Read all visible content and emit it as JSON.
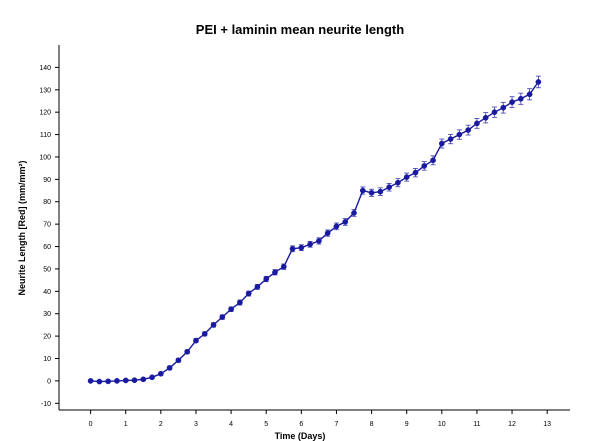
{
  "chart_data": {
    "type": "line",
    "title": "PEI + laminin mean neurite length",
    "xlabel": "Time (Days)",
    "ylabel": "Neurite Length [Red] (mm/mm²)",
    "xlim": [
      -0.9,
      13.65
    ],
    "ylim": [
      -13,
      150
    ],
    "x_ticks": [
      0,
      1,
      2,
      3,
      4,
      5,
      6,
      7,
      8,
      9,
      10,
      11,
      12,
      13
    ],
    "y_ticks": [
      -10,
      0,
      10,
      20,
      30,
      40,
      50,
      60,
      70,
      80,
      90,
      100,
      110,
      120,
      130,
      140
    ],
    "grid": false,
    "legend": "none",
    "colors": {
      "series": "#1a1aa0",
      "error_bar": "#3a3ab0",
      "axis": "#000000"
    },
    "series": [
      {
        "x": [
          0,
          0.25,
          0.5,
          0.75,
          1,
          1.25,
          1.5,
          1.75,
          2,
          2.25,
          2.5,
          2.75,
          3,
          3.25,
          3.5,
          3.75,
          4,
          4.25,
          4.5,
          4.75,
          5,
          5.25,
          5.5,
          5.75,
          6,
          6.25,
          6.5,
          6.75,
          7,
          7.25,
          7.5,
          7.75,
          8,
          8.25,
          8.5,
          8.75,
          9,
          9.25,
          9.5,
          9.75,
          10,
          10.25,
          10.5,
          10.75,
          11,
          11.25,
          11.5,
          11.75,
          12,
          12.25,
          12.5,
          12.75
        ],
        "y": [
          0,
          -0.3,
          -0.2,
          0,
          0.2,
          0.3,
          0.7,
          1.6,
          3.2,
          5.8,
          9.2,
          13,
          18,
          21,
          25,
          28.5,
          32,
          35,
          39,
          42,
          45.5,
          48.5,
          51,
          59,
          59.5,
          61,
          62.5,
          66,
          69,
          71,
          75,
          85,
          84,
          84.5,
          86.5,
          88.5,
          91,
          93,
          96,
          98.5,
          106,
          108,
          110,
          112,
          115,
          117.5,
          120,
          122,
          124.5,
          126,
          128,
          133.5
        ],
        "err": [
          0.5,
          0.5,
          0.5,
          0.5,
          0.5,
          0.5,
          0.6,
          0.6,
          0.7,
          0.8,
          0.8,
          0.8,
          0.9,
          0.9,
          1,
          1,
          1,
          1.1,
          1.1,
          1.1,
          1.2,
          1.2,
          1.2,
          1.3,
          1.3,
          1.3,
          1.4,
          1.4,
          1.5,
          1.5,
          1.5,
          1.6,
          1.6,
          1.7,
          1.7,
          1.8,
          1.8,
          1.9,
          1.9,
          2,
          2,
          2.1,
          2.1,
          2.2,
          2.2,
          2.3,
          2.3,
          2.4,
          2.4,
          2.5,
          2.5,
          2.6
        ]
      }
    ]
  }
}
